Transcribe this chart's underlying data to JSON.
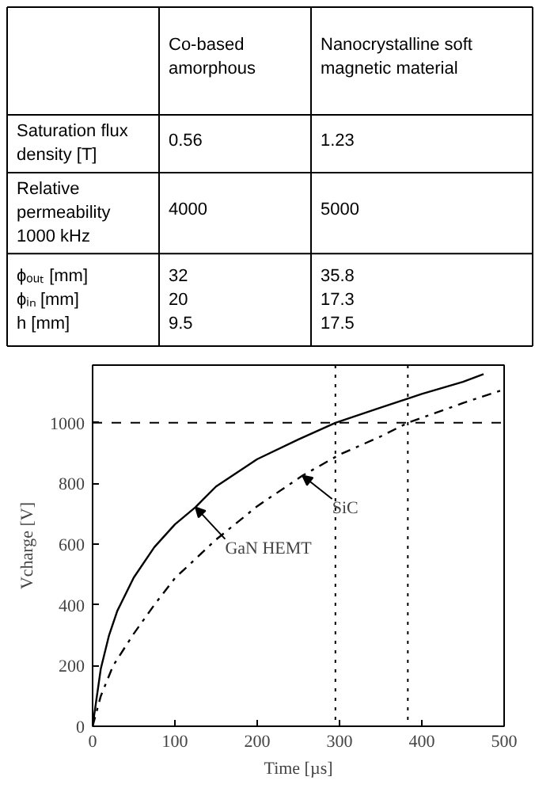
{
  "chart_data": [
    {
      "type": "other",
      "categories": [
        null,
        "Co-based\namorphous",
        "Nanocrystalline soft\nmagnetic material"
      ],
      "y_categories": [
        "Saturation flux\ndensity [T]",
        "Relative\npermeability\n1000 kHz",
        "ϕₒᵤₜ [mm]\nϕᵢₙ [mm]\nh [mm]"
      ],
      "cell_labels": [
        [
          "0.56",
          "1.23"
        ],
        [
          "4000",
          "5000"
        ],
        [
          "32\n20\n9.5",
          "35.8\n17.3\n17.5"
        ]
      ]
    },
    {
      "type": "line",
      "xlabel": "Time [µs]",
      "ylabel": "Vcharge [V]",
      "xlim": [
        0,
        500
      ],
      "ylim": [
        0,
        1190
      ],
      "xticks": [
        0,
        100,
        200,
        300,
        400,
        500
      ],
      "yticks": [
        0,
        200,
        400,
        600,
        800,
        1000
      ],
      "grid": false,
      "series": [
        {
          "color": "#000000",
          "line_style": "solid",
          "x": [
            0,
            10,
            20,
            30,
            50,
            75,
            100,
            125,
            150,
            200,
            250,
            295,
            350,
            400,
            450,
            475
          ],
          "values": [
            0,
            190,
            300,
            380,
            490,
            590,
            665,
            722,
            790,
            880,
            945,
            1000,
            1050,
            1095,
            1135,
            1160
          ]
        },
        {
          "color": "#000000",
          "line_style": "dashdot",
          "x": [
            0,
            10,
            25,
            50,
            75,
            100,
            150,
            200,
            255,
            300,
            350,
            383,
            450,
            500
          ],
          "values": [
            0,
            100,
            200,
            305,
            400,
            488,
            615,
            725,
            826,
            895,
            955,
            1000,
            1065,
            1110
          ]
        }
      ],
      "ref_lines": [
        {
          "axis": "y",
          "value": 1000,
          "line_style": "dashed"
        },
        {
          "axis": "x",
          "value": 295,
          "line_style": "dotted"
        },
        {
          "axis": "x",
          "value": 383,
          "line_style": "dotted"
        }
      ],
      "annotations": [
        {
          "text": "GaN HEMT",
          "x": 125,
          "y": 722
        },
        {
          "text": "SiC",
          "x": 255,
          "y": 826
        }
      ]
    }
  ]
}
